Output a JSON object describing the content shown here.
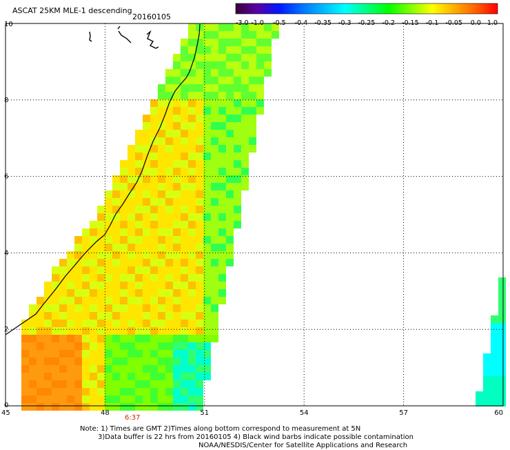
{
  "header": {
    "title": "ASCAT 25KM MLE-1 descending",
    "date": "20160105"
  },
  "colorbar": {
    "ticks": [
      "-3.0",
      "-1.0",
      "-0.5",
      "-0.4",
      "-0.35",
      "-0.3",
      "-0.25",
      "-0.2",
      "-0.15",
      "-0.1",
      "-0.05",
      "0.0",
      "1.0"
    ],
    "colors": [
      "#3a0038",
      "#5a00a8",
      "#0018ff",
      "#0070ff",
      "#00b8ff",
      "#00ffff",
      "#00ff80",
      "#00ff00",
      "#80ff00",
      "#ffff00",
      "#ffb000",
      "#ff6000",
      "#ff0000"
    ]
  },
  "axes": {
    "x_ticks": [
      "45",
      "48",
      "51",
      "54",
      "57",
      "60"
    ],
    "y_ticks": [
      "0",
      "2",
      "4",
      "6",
      "8",
      "10"
    ],
    "x_range": [
      45,
      60
    ],
    "y_range": [
      0,
      10
    ]
  },
  "time_label": "6:37",
  "notes": {
    "line1": "Note: 1) Times are GMT 2)Times along bottom correspond to measurement at 5N",
    "line2": "3)Data buffer is 22 hrs from 20160105 4) Black wind barbs indicate possible contamination",
    "line3": "NOAA/NESDIS/Center for Satellite Applications and Research"
  }
}
